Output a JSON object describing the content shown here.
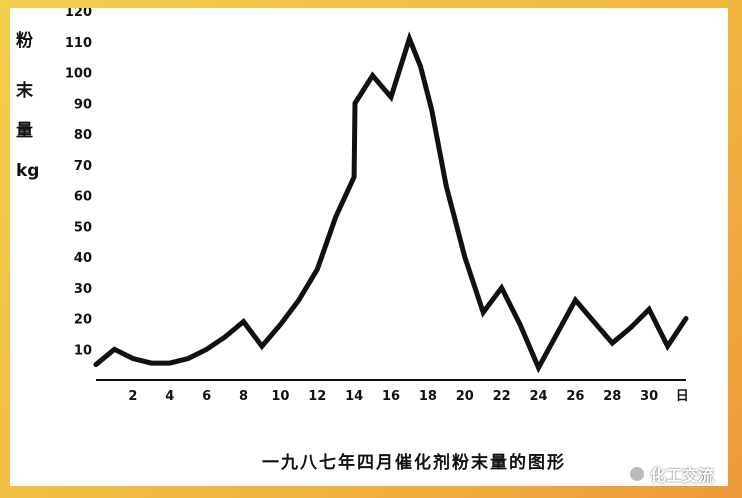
{
  "chart_data": {
    "type": "line",
    "caption": "一九八七年四月催化剂粉末量的图形",
    "ylabel_chars": [
      "粉",
      "末",
      "量"
    ],
    "yunit": "kg",
    "xunit": "日",
    "ylim": [
      0,
      120
    ],
    "xlim": [
      0,
      32
    ],
    "yticks": [
      10,
      20,
      30,
      40,
      50,
      60,
      70,
      80,
      90,
      100,
      110,
      120
    ],
    "xticks": [
      2,
      4,
      6,
      8,
      10,
      12,
      14,
      16,
      18,
      20,
      22,
      24,
      26,
      28,
      30
    ],
    "grid": false,
    "x": [
      0,
      1,
      2,
      3,
      4,
      5,
      6,
      7,
      8,
      9,
      10,
      11,
      12,
      13,
      14,
      14.05,
      15,
      16,
      17,
      17.6,
      18.2,
      19,
      20,
      21,
      22,
      23,
      24,
      25,
      26,
      27,
      28,
      29,
      30,
      31,
      32
    ],
    "y": [
      5,
      10,
      7,
      5.5,
      5.5,
      7,
      10,
      14,
      19,
      11,
      18,
      26,
      36,
      53,
      66,
      90,
      99,
      92,
      111,
      102,
      88,
      63,
      40,
      22,
      30,
      18,
      4,
      15,
      26,
      19,
      12,
      17,
      23,
      11,
      20
    ],
    "line_color": "#111111"
  },
  "watermark": {
    "text": "化工交流",
    "icon": "wechat-icon"
  }
}
